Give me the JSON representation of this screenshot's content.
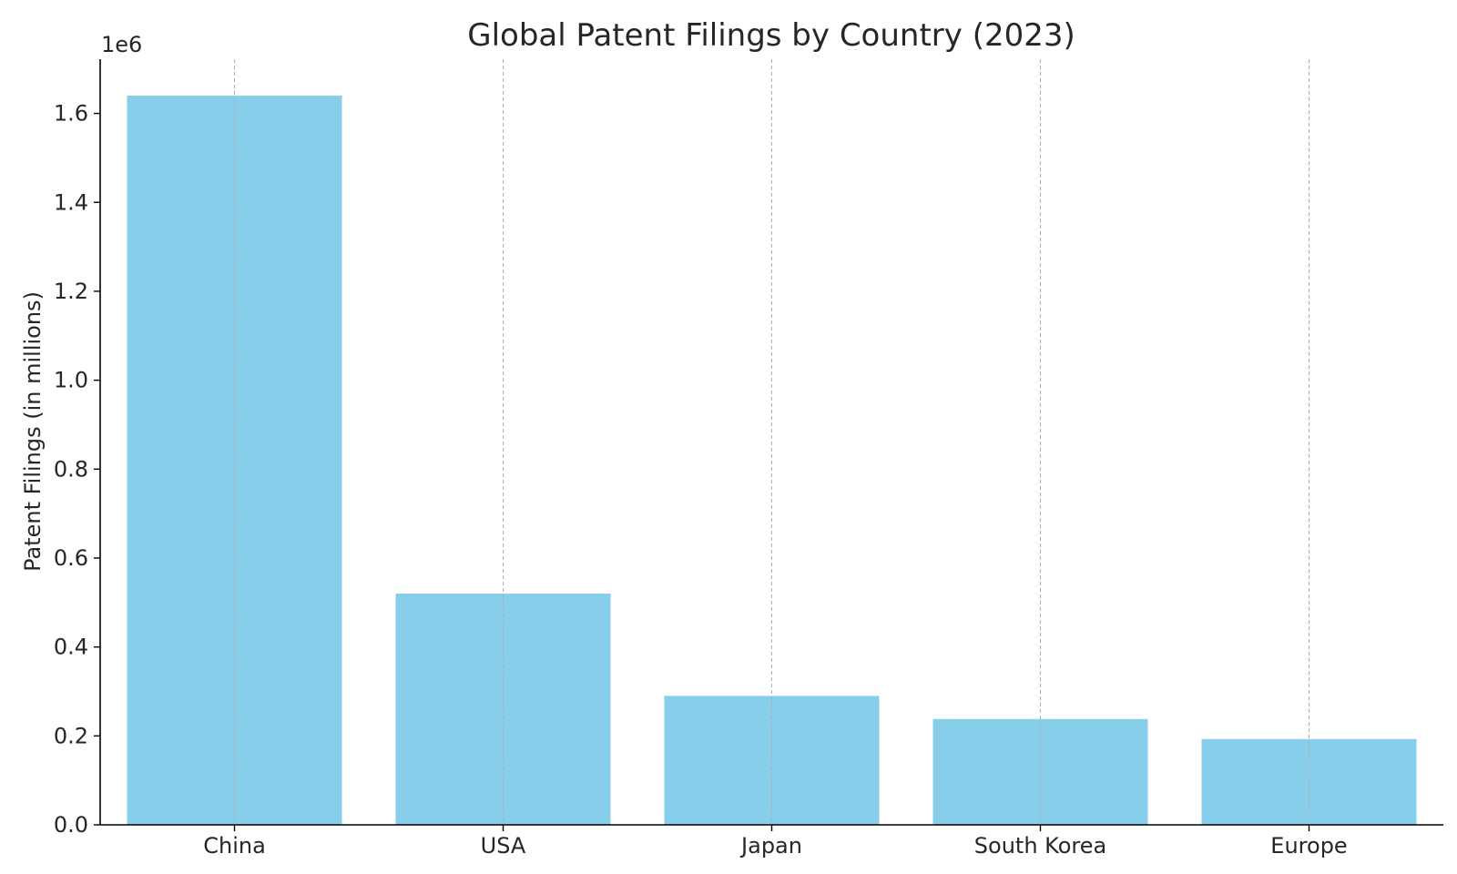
{
  "chart_data": {
    "type": "bar",
    "title": "Global Patent Filings by Country (2023)",
    "xlabel": "",
    "ylabel": "Patent Filings (in millions)",
    "y_offset_text": "1e6",
    "categories": [
      "China",
      "USA",
      "Japan",
      "South Korea",
      "Europe"
    ],
    "values": [
      1640000,
      520000,
      290000,
      238000,
      193000
    ],
    "ylim": [
      0,
      1722000
    ],
    "yticks": [
      0,
      200000,
      400000,
      600000,
      800000,
      1000000,
      1200000,
      1400000,
      1600000
    ],
    "ytick_labels": [
      "0.0",
      "0.2",
      "0.4",
      "0.6",
      "0.8",
      "1.0",
      "1.2",
      "1.4",
      "1.6"
    ],
    "grid": "vertical-dashed",
    "bar_color": "#87CEEB",
    "grid_color": "#b0b0b0",
    "axis_color": "#000000",
    "text_color": "#262626"
  }
}
